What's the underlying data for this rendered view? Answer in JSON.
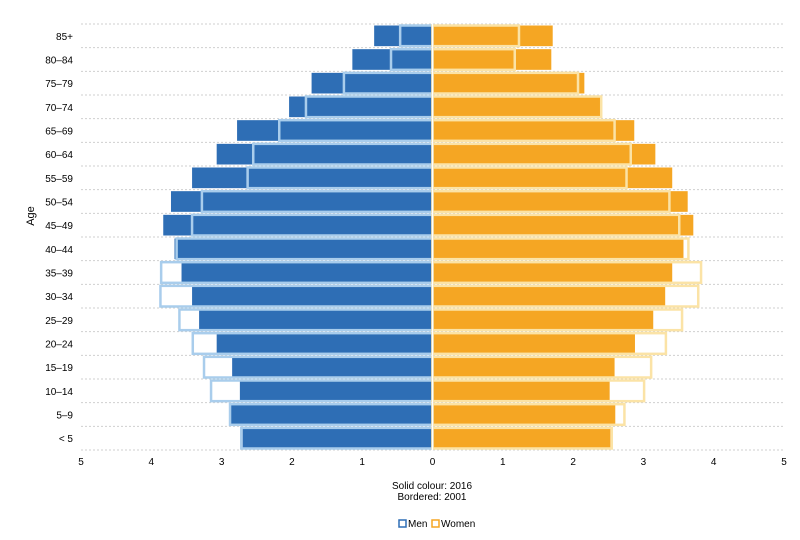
{
  "chart_data": {
    "type": "bar",
    "orientation": "horizontal",
    "layout": "population-pyramid",
    "ylabel": "Age",
    "xlabel_lines": [
      "Solid colour: 2016",
      "Bordered: 2001"
    ],
    "categories": [
      "85+",
      "80–84",
      "75–79",
      "70–74",
      "65–69",
      "60–64",
      "55–59",
      "50–54",
      "45–49",
      "40–44",
      "35–39",
      "30–34",
      "25–29",
      "20–24",
      "15–19",
      "10–14",
      "5–9",
      "< 5"
    ],
    "x_ticks": [
      -5,
      -4,
      -3,
      -2,
      -1,
      0,
      1,
      2,
      3,
      4,
      5
    ],
    "x_tick_labels": [
      "5",
      "4",
      "3",
      "2",
      "1",
      "0",
      "1",
      "2",
      "3",
      "4",
      "5"
    ],
    "xlim": [
      -5,
      5
    ],
    "grid": true,
    "legend_position": "bottom",
    "legend": [
      {
        "label": "Men",
        "color": "#2e6eb5"
      },
      {
        "label": "Women",
        "color": "#f5a623"
      }
    ],
    "series": [
      {
        "name": "Men",
        "year": "2016",
        "style": "solid",
        "side": "left",
        "color": "#2e6eb5",
        "values": [
          0.83,
          1.14,
          1.72,
          2.04,
          2.78,
          3.07,
          3.42,
          3.72,
          3.83,
          3.67,
          3.57,
          3.42,
          3.32,
          3.07,
          2.85,
          2.74,
          2.87,
          2.7
        ]
      },
      {
        "name": "Women",
        "year": "2016",
        "style": "solid",
        "side": "right",
        "color": "#f5a623",
        "values": [
          1.71,
          1.69,
          2.16,
          2.41,
          2.87,
          3.17,
          3.41,
          3.63,
          3.71,
          3.57,
          3.41,
          3.31,
          3.14,
          2.88,
          2.59,
          2.52,
          2.6,
          2.53
        ]
      },
      {
        "name": "Men",
        "year": "2001",
        "style": "bordered",
        "side": "left",
        "color": "#a9cdec",
        "values": [
          0.46,
          0.59,
          1.26,
          1.8,
          2.18,
          2.55,
          2.63,
          3.28,
          3.42,
          3.64,
          3.86,
          3.87,
          3.6,
          3.41,
          3.25,
          3.15,
          2.88,
          2.72
        ]
      },
      {
        "name": "Women",
        "year": "2001",
        "style": "bordered",
        "side": "right",
        "color": "#fbe3a6",
        "values": [
          1.23,
          1.17,
          2.07,
          2.4,
          2.59,
          2.82,
          2.76,
          3.37,
          3.51,
          3.64,
          3.82,
          3.78,
          3.55,
          3.32,
          3.11,
          3.01,
          2.73,
          2.55
        ]
      }
    ]
  }
}
